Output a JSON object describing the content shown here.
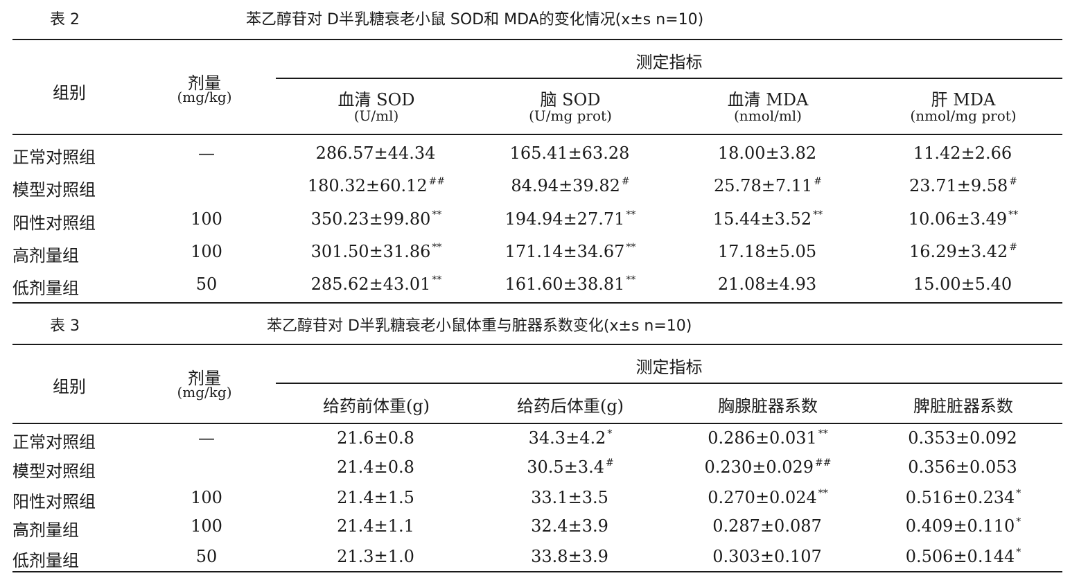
{
  "table2": {
    "label": "表 2",
    "title": "苯乙醇苷对 D半乳糖衰老小鼠 SOD和 MDA的变化情况(x±s n=10)",
    "group_header": "组别",
    "dose_header": "剂量",
    "dose_unit": "(mg/kg)",
    "indicator_header": "测定指标",
    "columns": [
      {
        "name": "血清 SOD",
        "unit": "(U/ml)"
      },
      {
        "name": "脑 SOD",
        "unit": "(U/mg prot)"
      },
      {
        "name": "血清 MDA",
        "unit": "(nmol/ml)"
      },
      {
        "name": "肝 MDA",
        "unit": "(nmol/mg prot)"
      }
    ],
    "rows": [
      {
        "group": "正常对照组",
        "dose": "—",
        "values": [
          {
            "v": "286.57±44.34",
            "m": ""
          },
          {
            "v": "165.41±63.28",
            "m": ""
          },
          {
            "v": "18.00±3.82",
            "m": ""
          },
          {
            "v": "11.42±2.66",
            "m": ""
          }
        ]
      },
      {
        "group": "模型对照组",
        "dose": "",
        "values": [
          {
            "v": "180.32±60.12",
            "m": "##"
          },
          {
            "v": "84.94±39.82",
            "m": "#"
          },
          {
            "v": "25.78±7.11",
            "m": "#"
          },
          {
            "v": "23.71±9.58",
            "m": "#"
          }
        ]
      },
      {
        "group": "阳性对照组",
        "dose": "100",
        "values": [
          {
            "v": "350.23±99.80",
            "m": "**"
          },
          {
            "v": "194.94±27.71",
            "m": "**"
          },
          {
            "v": "15.44±3.52",
            "m": "**"
          },
          {
            "v": "10.06±3.49",
            "m": "**"
          }
        ]
      },
      {
        "group": "高剂量组",
        "dose": "100",
        "values": [
          {
            "v": "301.50±31.86",
            "m": "**"
          },
          {
            "v": "171.14±34.67",
            "m": "**"
          },
          {
            "v": "17.18±5.05",
            "m": ""
          },
          {
            "v": "16.29±3.42",
            "m": "#"
          }
        ]
      },
      {
        "group": "低剂量组",
        "dose": "50",
        "values": [
          {
            "v": "285.62±43.01",
            "m": "**"
          },
          {
            "v": "161.60±38.81",
            "m": "**"
          },
          {
            "v": "21.08±4.93",
            "m": ""
          },
          {
            "v": "15.00±5.40",
            "m": ""
          }
        ]
      }
    ]
  },
  "table3": {
    "label": "表 3",
    "title": "苯乙醇苷对 D半乳糖衰老小鼠体重与脏器系数变化(x±s n=10)",
    "group_header": "组别",
    "dose_header": "剂量",
    "dose_unit": "(mg/kg)",
    "indicator_header": "测定指标",
    "columns": [
      {
        "name": "给药前体重(g)"
      },
      {
        "name": "给药后体重(g)"
      },
      {
        "name": "胸腺脏器系数"
      },
      {
        "name": "脾脏脏器系数"
      }
    ],
    "rows": [
      {
        "group": "正常对照组",
        "dose": "—",
        "values": [
          {
            "v": "21.6±0.8",
            "m": ""
          },
          {
            "v": "34.3±4.2",
            "m": "*"
          },
          {
            "v": "0.286±0.031",
            "m": "**"
          },
          {
            "v": "0.353±0.092",
            "m": ""
          }
        ]
      },
      {
        "group": "模型对照组",
        "dose": "",
        "values": [
          {
            "v": "21.4±0.8",
            "m": ""
          },
          {
            "v": "30.5±3.4",
            "m": "#"
          },
          {
            "v": "0.230±0.029",
            "m": "##"
          },
          {
            "v": "0.356±0.053",
            "m": ""
          }
        ]
      },
      {
        "group": "阳性对照组",
        "dose": "100",
        "values": [
          {
            "v": "21.4±1.5",
            "m": ""
          },
          {
            "v": "33.1±3.5",
            "m": ""
          },
          {
            "v": "0.270±0.024",
            "m": "**"
          },
          {
            "v": "0.516±0.234",
            "m": "*"
          }
        ]
      },
      {
        "group": "高剂量组",
        "dose": "100",
        "values": [
          {
            "v": "21.4±1.1",
            "m": ""
          },
          {
            "v": "32.4±3.9",
            "m": ""
          },
          {
            "v": "0.287±0.087",
            "m": ""
          },
          {
            "v": "0.409±0.110",
            "m": "*"
          }
        ]
      },
      {
        "group": "低剂量组",
        "dose": "50",
        "values": [
          {
            "v": "21.3±1.0",
            "m": ""
          },
          {
            "v": "33.8±3.9",
            "m": ""
          },
          {
            "v": "0.303±0.107",
            "m": ""
          },
          {
            "v": "0.506±0.144",
            "m": "*"
          }
        ]
      }
    ]
  }
}
